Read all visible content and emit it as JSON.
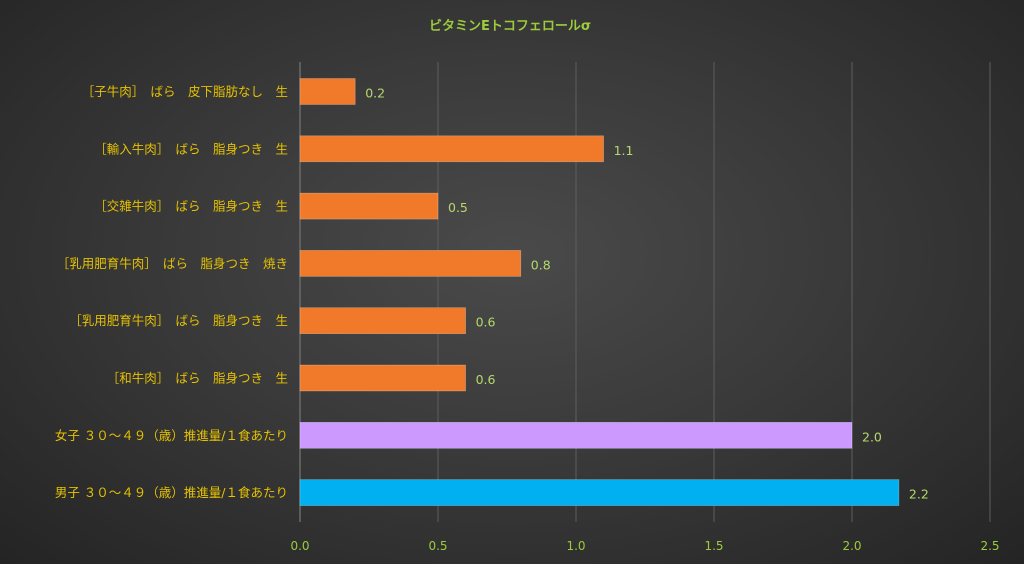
{
  "chart_data": {
    "type": "bar",
    "orientation": "horizontal",
    "title": "ビタミンEトコフェロールσ",
    "xlabel": "",
    "ylabel": "",
    "xlim": [
      0,
      2.5
    ],
    "ticks": [
      "0.0",
      "0.5",
      "1.0",
      "1.5",
      "2.0",
      "2.5"
    ],
    "tick_values": [
      0,
      0.5,
      1.0,
      1.5,
      2.0,
      2.5
    ],
    "grid": true,
    "categories": [
      "［子牛肉］　ばら　皮下脂肪なし　生",
      "［輸入牛肉］　ばら　脂身つき　生",
      "［交雑牛肉］　ばら　脂身つき　生",
      "［乳用肥育牛肉］　ばら　脂身つき　焼き",
      "［乳用肥育牛肉］　ばら　脂身つき　生",
      "［和牛肉］　ばら　脂身つき　生",
      "女子 ３０～４９（歳）推進量/１食あたり",
      "男子 ３０～４９（歳）推進量/１食あたり"
    ],
    "values": [
      0.2,
      1.1,
      0.5,
      0.8,
      0.6,
      0.6,
      2.0,
      2.17
    ],
    "value_labels": [
      "0.2",
      "1.1",
      "0.5",
      "0.8",
      "0.6",
      "0.6",
      "2.0",
      "2.2"
    ],
    "colors": [
      "#f07a2a",
      "#f07a2a",
      "#f07a2a",
      "#f07a2a",
      "#f07a2a",
      "#f07a2a",
      "#cc99ff",
      "#00b0f0"
    ]
  }
}
